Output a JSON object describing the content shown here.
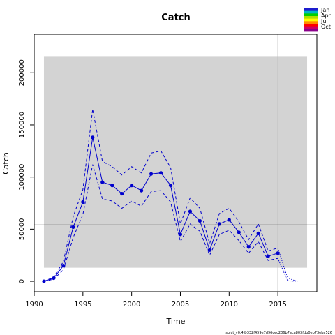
{
  "chart_data": {
    "type": "line",
    "title": "Catch",
    "xlabel": "Time",
    "ylabel": "Catch",
    "xlim": [
      1990,
      2019
    ],
    "ylim": [
      -10000,
      237000
    ],
    "x_ticks": [
      1990,
      1995,
      2000,
      2005,
      2010,
      2015
    ],
    "y_ticks": [
      0,
      50000,
      100000,
      150000,
      200000
    ],
    "grid": false,
    "shaded_region": {
      "x": [
        1991,
        2018
      ],
      "y": [
        13000,
        216000
      ],
      "color": "#d3d3d3"
    },
    "reference_hline": 54000,
    "reference_vline": 2015,
    "series": [
      {
        "role": "estimate",
        "color": "#0000cd",
        "x": [
          1991,
          1992,
          1993,
          1994,
          1995,
          1996,
          1997,
          1998,
          1999,
          2000,
          2001,
          2002,
          2003,
          2004,
          2005,
          2006,
          2007,
          2008,
          2009,
          2010,
          2011,
          2012,
          2013,
          2014,
          2015
        ],
        "values": [
          0,
          3000,
          15000,
          52000,
          76000,
          138000,
          95000,
          92000,
          84000,
          92000,
          87000,
          103000,
          104000,
          92000,
          45000,
          67000,
          58000,
          30000,
          55000,
          59000,
          47000,
          33000,
          46000,
          24000,
          27000
        ]
      },
      {
        "role": "upper-ci",
        "color": "#0000cd",
        "x": [
          1991,
          1992,
          1993,
          1994,
          1995,
          1996,
          1997,
          1998,
          1999,
          2000,
          2001,
          2002,
          2003,
          2004,
          2005,
          2006,
          2007,
          2008,
          2009,
          2010,
          2011,
          2012,
          2013,
          2014,
          2015
        ],
        "values": [
          0,
          4000,
          19000,
          62000,
          88000,
          165000,
          115000,
          110000,
          102000,
          110000,
          104000,
          123000,
          125000,
          109000,
          55000,
          80000,
          70000,
          36000,
          65000,
          70000,
          57000,
          40000,
          55000,
          29000,
          32000
        ]
      },
      {
        "role": "lower-ci",
        "color": "#0000cd",
        "x": [
          1991,
          1992,
          1993,
          1994,
          1995,
          1996,
          1997,
          1998,
          1999,
          2000,
          2001,
          2002,
          2003,
          2004,
          2005,
          2006,
          2007,
          2008,
          2009,
          2010,
          2011,
          2012,
          2013,
          2014,
          2015
        ],
        "values": [
          0,
          2000,
          11000,
          42000,
          64000,
          112000,
          79000,
          77000,
          70000,
          77000,
          72000,
          86000,
          87000,
          76000,
          38000,
          55000,
          48000,
          25000,
          45000,
          49000,
          39000,
          27000,
          38000,
          20000,
          22000
        ]
      },
      {
        "role": "predicted-upper",
        "color": "#0000cd",
        "x": [
          2015,
          2016,
          2017
        ],
        "values": [
          32000,
          3000,
          0
        ]
      },
      {
        "role": "predicted-lower",
        "color": "#0000cd",
        "x": [
          2015,
          2016,
          2017
        ],
        "values": [
          22000,
          500,
          0
        ]
      }
    ],
    "legend": {
      "placement": "top-right",
      "entries": [
        "Jan",
        "Apr",
        "Jul",
        "Oct"
      ],
      "colors": [
        "#1c1ccd",
        "#00b5c8",
        "#00d000",
        "#b0e000",
        "#ffff00",
        "#ff8c00",
        "#ff0000",
        "#cc0066",
        "#8b008b"
      ]
    }
  },
  "footer": "spict_v0.4@332f459e7d96cec206b7aca803fdb0eb73eba526"
}
